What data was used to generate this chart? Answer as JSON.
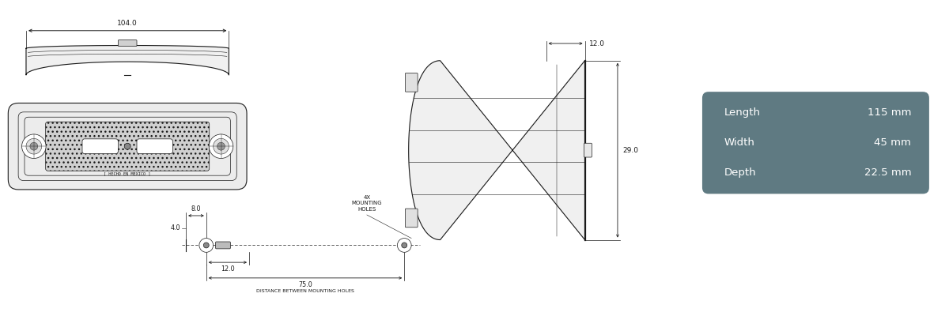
{
  "bg_color": "#ffffff",
  "line_color": "#1a1a1a",
  "table_bg": "#5f7a82",
  "table_text": "#ffffff",
  "table_rows": [
    [
      "Length",
      "115 mm"
    ],
    [
      "Width",
      "45 mm"
    ],
    [
      "Depth",
      "22.5 mm"
    ]
  ],
  "dim_104": "104.0",
  "dim_12_top": "12.0",
  "dim_29": "29.0",
  "dim_8": "8.0",
  "dim_4": "4.0",
  "dim_12_bot": "12.0",
  "dim_75": "75.0",
  "label_mounting": "4X\nMOUNTING\nHOLES",
  "label_distance": "DISTANCE BETWEEN MOUNTING HOLES"
}
